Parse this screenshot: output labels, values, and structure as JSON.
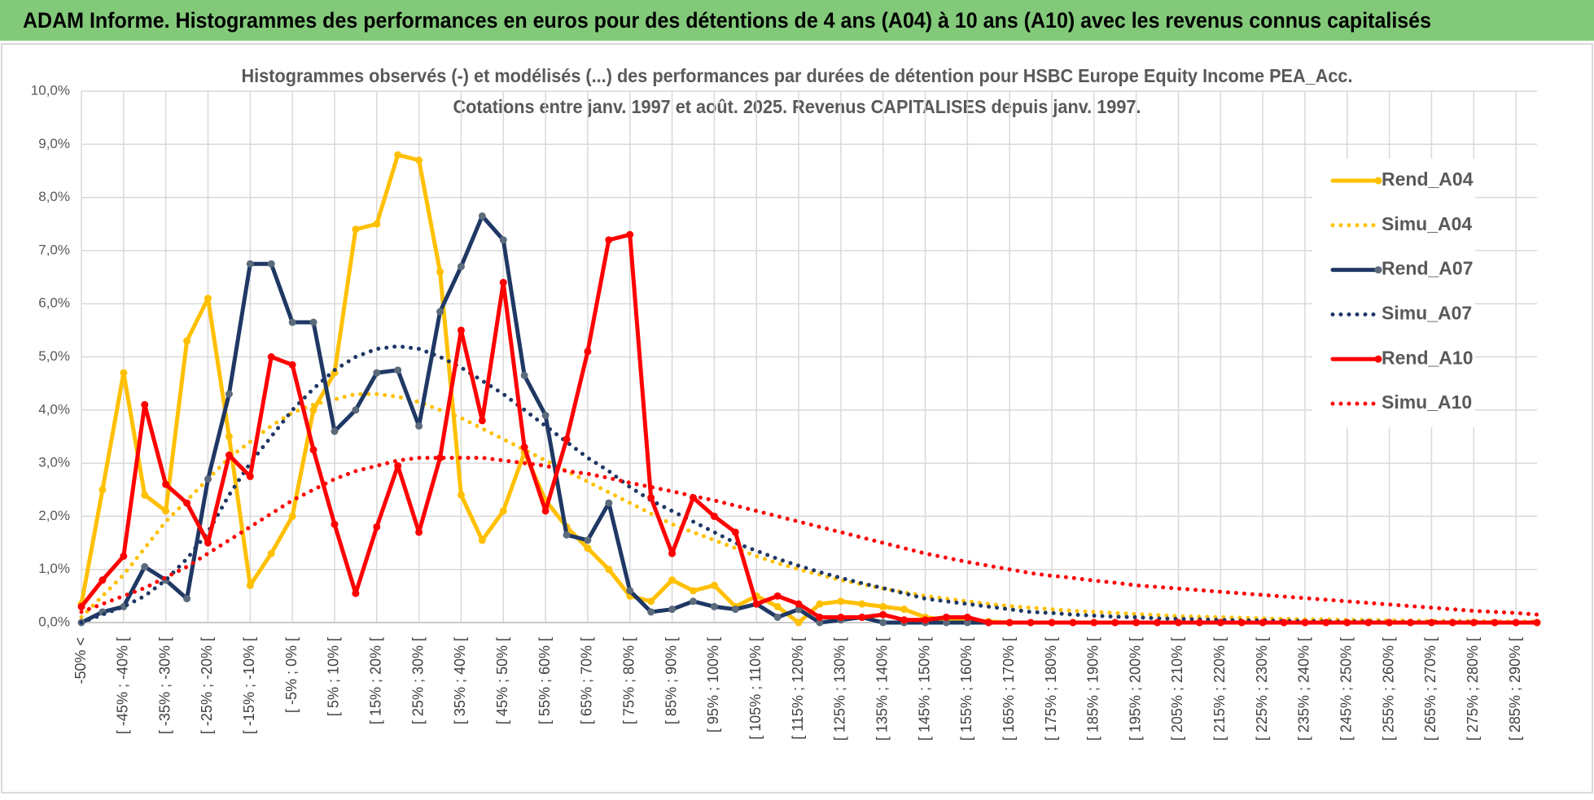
{
  "header": {
    "title": "ADAM Informe. Histogrammes des performances en euros pour des détentions de 4 ans (A04) à 10 ans (A10) avec les revenus connus capitalisés"
  },
  "chart_data": {
    "type": "line",
    "title": "Histogrammes observés (-) et modélisés (...) des performances par durées de détention pour HSBC Europe Equity Income PEA_Acc.",
    "subtitle": "Cotations entre janv. 1997 et août. 2025. Revenus CAPITALISES depuis janv. 1997.",
    "categories": [
      "-50% <",
      null,
      "[ -45% ; -40% [",
      null,
      "[ -35% ; -30% [",
      null,
      "[ -25% ; -20% [",
      null,
      "[ -15% ; -10% [",
      null,
      "[ -5% ; 0% [",
      null,
      "[ 5% ; 10% [",
      null,
      "[ 15% ; 20% [",
      null,
      "[ 25% ; 30% [",
      null,
      "[ 35% ; 40% [",
      null,
      "[ 45% ; 50% [",
      null,
      "[ 55% ; 60% [",
      null,
      "[ 65% ; 70% [",
      null,
      "[ 75% ; 80% [",
      null,
      "[ 85% ; 90% [",
      null,
      "[ 95% ; 100% [",
      null,
      "[ 105% ; 110% [",
      null,
      "[ 115% ; 120% [",
      null,
      "[ 125% ; 130% [",
      null,
      "[ 135% ; 140% [",
      null,
      "[ 145% ; 150% [",
      null,
      "[ 155% ; 160% [",
      null,
      "[ 165% ; 170% [",
      null,
      "[ 175% ; 180% [",
      null,
      "[ 185% ; 190% [",
      null,
      "[ 195% ; 200% [",
      null,
      "[ 205% ; 210% [",
      null,
      "[ 215% ; 220% [",
      null,
      "[ 225% ; 230% [",
      null,
      "[ 235% ; 240% [",
      null,
      "[ 245% ; 250% [",
      null,
      "[ 255% ; 260% [",
      null,
      "[ 265% ; 270% [",
      null,
      "[ 275% ; 280% [",
      null,
      "[ 285% ; 290% [",
      null
    ],
    "series": [
      {
        "name": "Rend_A04",
        "color": "#ffc000",
        "style": "solid",
        "marker_color": "#ffc000",
        "values": [
          0.35,
          2.5,
          4.7,
          2.4,
          2.1,
          5.3,
          6.1,
          3.5,
          0.7,
          1.3,
          2.0,
          4.0,
          4.7,
          7.4,
          7.5,
          8.8,
          8.7,
          6.6,
          2.4,
          1.55,
          2.1,
          3.2,
          2.3,
          1.8,
          1.4,
          1.0,
          0.5,
          0.4,
          0.8,
          0.6,
          0.7,
          0.3,
          0.5,
          0.3,
          0.0,
          0.35,
          0.4,
          0.35,
          0.3,
          0.25,
          0.1,
          0.05,
          0.05,
          0.02,
          0,
          0,
          0,
          0,
          0,
          0,
          0,
          0,
          0,
          0,
          0,
          0,
          0,
          0,
          0,
          0,
          0,
          0,
          0,
          0,
          0,
          0,
          0,
          0,
          0,
          0
        ]
      },
      {
        "name": "Simu_A04",
        "color": "#ffc000",
        "style": "dotted",
        "values": [
          0.1,
          0.5,
          0.9,
          1.4,
          1.9,
          2.3,
          2.7,
          3.1,
          3.4,
          3.7,
          3.95,
          4.1,
          4.2,
          4.3,
          4.3,
          4.25,
          4.15,
          4.0,
          3.85,
          3.65,
          3.45,
          3.25,
          3.05,
          2.85,
          2.65,
          2.45,
          2.25,
          2.05,
          1.85,
          1.7,
          1.55,
          1.4,
          1.25,
          1.12,
          1.0,
          0.9,
          0.8,
          0.72,
          0.64,
          0.57,
          0.5,
          0.45,
          0.4,
          0.35,
          0.31,
          0.28,
          0.25,
          0.22,
          0.2,
          0.18,
          0.16,
          0.14,
          0.12,
          0.11,
          0.1,
          0.09,
          0.08,
          0.07,
          0.06,
          0.06,
          0.05,
          0.05,
          0.04,
          0.04,
          0.03,
          0.03,
          0.03,
          0.02,
          0.02,
          0.02
        ]
      },
      {
        "name": "Rend_A07",
        "color": "#1f3864",
        "style": "solid",
        "marker_color": "#5b6b7b",
        "values": [
          0.0,
          0.2,
          0.3,
          1.05,
          0.8,
          0.45,
          2.7,
          4.3,
          6.75,
          6.75,
          5.65,
          5.65,
          3.6,
          4.0,
          4.7,
          4.75,
          3.7,
          5.85,
          6.7,
          7.65,
          7.2,
          4.65,
          3.9,
          1.65,
          1.55,
          2.25,
          0.6,
          0.2,
          0.25,
          0.4,
          0.3,
          0.25,
          0.35,
          0.1,
          0.25,
          0.0,
          0.05,
          0.1,
          0.0,
          0.0,
          0,
          0,
          0,
          0,
          null,
          null,
          null,
          null,
          null,
          null,
          null,
          null,
          null,
          null,
          null,
          null,
          null,
          null,
          null,
          null,
          null,
          null,
          null,
          null,
          null,
          null,
          null,
          null,
          null,
          null
        ]
      },
      {
        "name": "Simu_A07",
        "color": "#1f3864",
        "style": "dotted",
        "values": [
          0.0,
          0.15,
          0.3,
          0.5,
          0.8,
          1.2,
          1.7,
          2.4,
          3.0,
          3.5,
          4.0,
          4.4,
          4.75,
          5.0,
          5.15,
          5.2,
          5.15,
          5.0,
          4.8,
          4.55,
          4.3,
          4.0,
          3.7,
          3.4,
          3.1,
          2.85,
          2.55,
          2.3,
          2.1,
          1.9,
          1.7,
          1.5,
          1.35,
          1.2,
          1.07,
          0.95,
          0.84,
          0.74,
          0.65,
          0.55,
          0.45,
          0.4,
          0.35,
          0.3,
          0.25,
          0.2,
          0.18,
          0.15,
          0.13,
          0.11,
          0.1,
          0.08,
          0.07,
          0.06,
          0.05,
          0.04,
          0.04,
          0.03,
          0.03,
          0.02,
          0.02,
          0.02,
          0.01,
          0.01,
          0.01,
          0.01,
          0.01,
          0.0,
          0.0,
          0.0
        ]
      },
      {
        "name": "Rend_A10",
        "color": "#ff0000",
        "style": "solid",
        "marker_color": "#ff0000",
        "values": [
          0.3,
          0.8,
          1.25,
          4.1,
          2.6,
          2.25,
          1.5,
          3.15,
          2.75,
          5.0,
          4.85,
          3.25,
          1.85,
          0.55,
          1.8,
          2.95,
          1.7,
          3.1,
          5.5,
          3.8,
          6.4,
          3.3,
          2.1,
          3.45,
          5.1,
          7.2,
          7.3,
          2.35,
          1.3,
          2.35,
          2.0,
          1.7,
          0.35,
          0.5,
          0.35,
          0.1,
          0.1,
          0.1,
          0.15,
          0.05,
          0.05,
          0.1,
          0.1,
          0,
          0,
          0,
          0,
          0,
          0,
          0,
          0,
          0,
          0,
          0,
          0,
          0,
          0,
          0,
          0,
          0,
          0,
          0,
          0,
          0,
          0,
          0,
          0,
          0,
          0,
          0
        ]
      },
      {
        "name": "Simu_A10",
        "color": "#ff0000",
        "style": "dotted",
        "values": [
          0.2,
          0.35,
          0.5,
          0.65,
          0.85,
          1.05,
          1.3,
          1.55,
          1.8,
          2.05,
          2.3,
          2.5,
          2.7,
          2.85,
          2.95,
          3.05,
          3.1,
          3.1,
          3.1,
          3.1,
          3.05,
          3.0,
          2.95,
          2.85,
          2.8,
          2.72,
          2.63,
          2.55,
          2.47,
          2.38,
          2.3,
          2.2,
          2.1,
          2.0,
          1.9,
          1.8,
          1.7,
          1.6,
          1.5,
          1.4,
          1.3,
          1.22,
          1.14,
          1.07,
          1.0,
          0.93,
          0.88,
          0.84,
          0.79,
          0.75,
          0.7,
          0.67,
          0.64,
          0.61,
          0.58,
          0.55,
          0.52,
          0.49,
          0.46,
          0.43,
          0.4,
          0.37,
          0.34,
          0.31,
          0.28,
          0.25,
          0.22,
          0.2,
          0.18,
          0.15
        ]
      }
    ],
    "ylim": [
      0,
      10
    ],
    "yticks": [
      {
        "value": 0,
        "label": "0,0%"
      },
      {
        "value": 1,
        "label": "1,0%"
      },
      {
        "value": 2,
        "label": "2,0%"
      },
      {
        "value": 3,
        "label": "3,0%"
      },
      {
        "value": 4,
        "label": "4,0%"
      },
      {
        "value": 5,
        "label": "5,0%"
      },
      {
        "value": 6,
        "label": "6,0%"
      },
      {
        "value": 7,
        "label": "7,0%"
      },
      {
        "value": 8,
        "label": "8,0%"
      },
      {
        "value": 9,
        "label": "9,0%"
      },
      {
        "value": 10,
        "label": "10,0%"
      }
    ],
    "grid": true,
    "legend": "right"
  }
}
